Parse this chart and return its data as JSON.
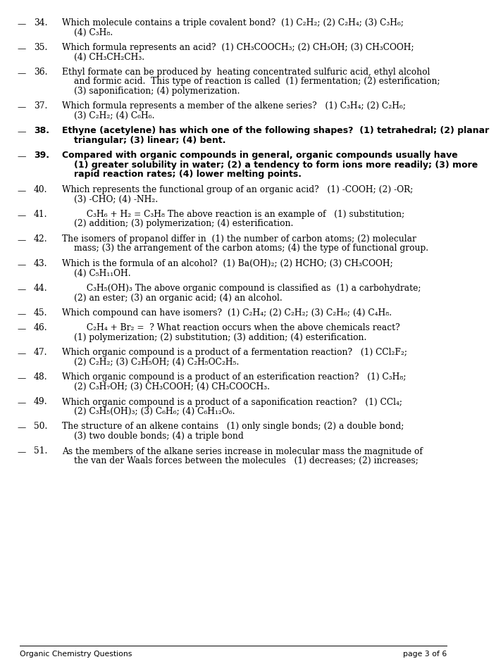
{
  "bg_color": "#ffffff",
  "text_color": "#000000",
  "footer_font_size": 8.0,
  "questions": [
    {
      "num": "34.",
      "bold": false,
      "lines": [
        "Which molecule contains a triple covalent bond?  (1) C₂H₂; (2) C₂H₄; (3) C₃H₆;",
        "(4) C₃H₈."
      ]
    },
    {
      "num": "35.",
      "bold": false,
      "lines": [
        "Which formula represents an acid?  (1) CH₃COOCH₃; (2) CH₃OH; (3) CH₃COOH;",
        "(4) CH₃CH₂CH₃."
      ]
    },
    {
      "num": "36.",
      "bold": false,
      "lines": [
        "Ethyl formate can be produced by  heating concentrated sulfuric acid, ethyl alcohol",
        "and formic acid.  This type of reaction is called  (1) fermentation; (2) esterification;",
        "(3) saponification; (4) polymerization."
      ]
    },
    {
      "num": "37.",
      "bold": false,
      "lines": [
        "Which formula represents a member of the alkene series?   (1) C₃H₄; (2) C₂H₆;",
        "(3) C₂H₂; (4) C₆H₆."
      ]
    },
    {
      "num": "38.",
      "bold": true,
      "lines": [
        "Ethyne (acetylene) has which one of the following shapes?  (1) tetrahedral; (2) planar",
        "triangular; (3) linear; (4) bent."
      ]
    },
    {
      "num": "39.",
      "bold": true,
      "lines": [
        "Compared with organic compounds in general, organic compounds usually have",
        "(1) greater solubility in water; (2) a tendency to form ions more readily; (3) more",
        "rapid reaction rates; (4) lower melting points."
      ]
    },
    {
      "num": "40.",
      "bold": false,
      "lines": [
        "Which represents the functional group of an organic acid?   (1) -COOH; (2) -OR;",
        "(3) -CHO; (4) -NH₂."
      ]
    },
    {
      "num": "41.",
      "bold": false,
      "lines": [
        "         C₃H₆ + H₂ = C₃H₈ The above reaction is an example of   (1) substitution;",
        "(2) addition; (3) polymerization; (4) esterification."
      ]
    },
    {
      "num": "42.",
      "bold": false,
      "lines": [
        "The isomers of propanol differ in  (1) the number of carbon atoms; (2) molecular",
        "mass; (3) the arrangement of the carbon atoms; (4) the type of functional group."
      ]
    },
    {
      "num": "43.",
      "bold": false,
      "lines": [
        "Which is the formula of an alcohol?  (1) Ba(OH)₂; (2) HCHO; (3) CH₃COOH;",
        "(4) C₅H₁₁OH."
      ]
    },
    {
      "num": "44.",
      "bold": false,
      "lines": [
        "         C₃H₅(OH)₃ The above organic compound is classified as  (1) a carbohydrate;",
        "(2) an ester; (3) an organic acid; (4) an alcohol."
      ]
    },
    {
      "num": "45.",
      "bold": false,
      "lines": [
        "Which compound can have isomers?  (1) C₂H₄; (2) C₂H₂; (3) C₂H₆; (4) C₄H₈."
      ]
    },
    {
      "num": "46.",
      "bold": false,
      "lines": [
        "         C₂H₄ + Br₂ =  ? What reaction occurs when the above chemicals react?",
        "(1) polymerization; (2) substitution; (3) addition; (4) esterification."
      ]
    },
    {
      "num": "47.",
      "bold": false,
      "lines": [
        "Which organic compound is a product of a fermentation reaction?   (1) CCl₂F₂;",
        "(2) C₂H₂; (3) C₂H₅OH; (4) C₂H₅OC₂H₅."
      ]
    },
    {
      "num": "48.",
      "bold": false,
      "lines": [
        "Which organic compound is a product of an esterification reaction?   (1) C₃H₈;",
        "(2) C₃H₇OH; (3) CH₃COOH; (4) CH₃COOCH₃."
      ]
    },
    {
      "num": "49.",
      "bold": false,
      "lines": [
        "Which organic compound is a product of a saponification reaction?   (1) CCl₄;",
        "(2) C₃H₅(OH)₃; (3) C₆H₆; (4) C₆H₁₂O₆."
      ]
    },
    {
      "num": "50.",
      "bold": false,
      "lines": [
        "The structure of an alkene contains   (1) only single bonds; (2) a double bond;",
        "(3) two double bonds; (4) a triple bond"
      ]
    },
    {
      "num": "51.",
      "bold": false,
      "lines": [
        "As the members of the alkane series increase in molecular mass the magnitude of",
        "the van der Waals forces between the molecules   (1) decreases; (2) increases;"
      ]
    }
  ],
  "footer_left": "Organic Chemistry Questions",
  "footer_right": "page 3 of 6"
}
